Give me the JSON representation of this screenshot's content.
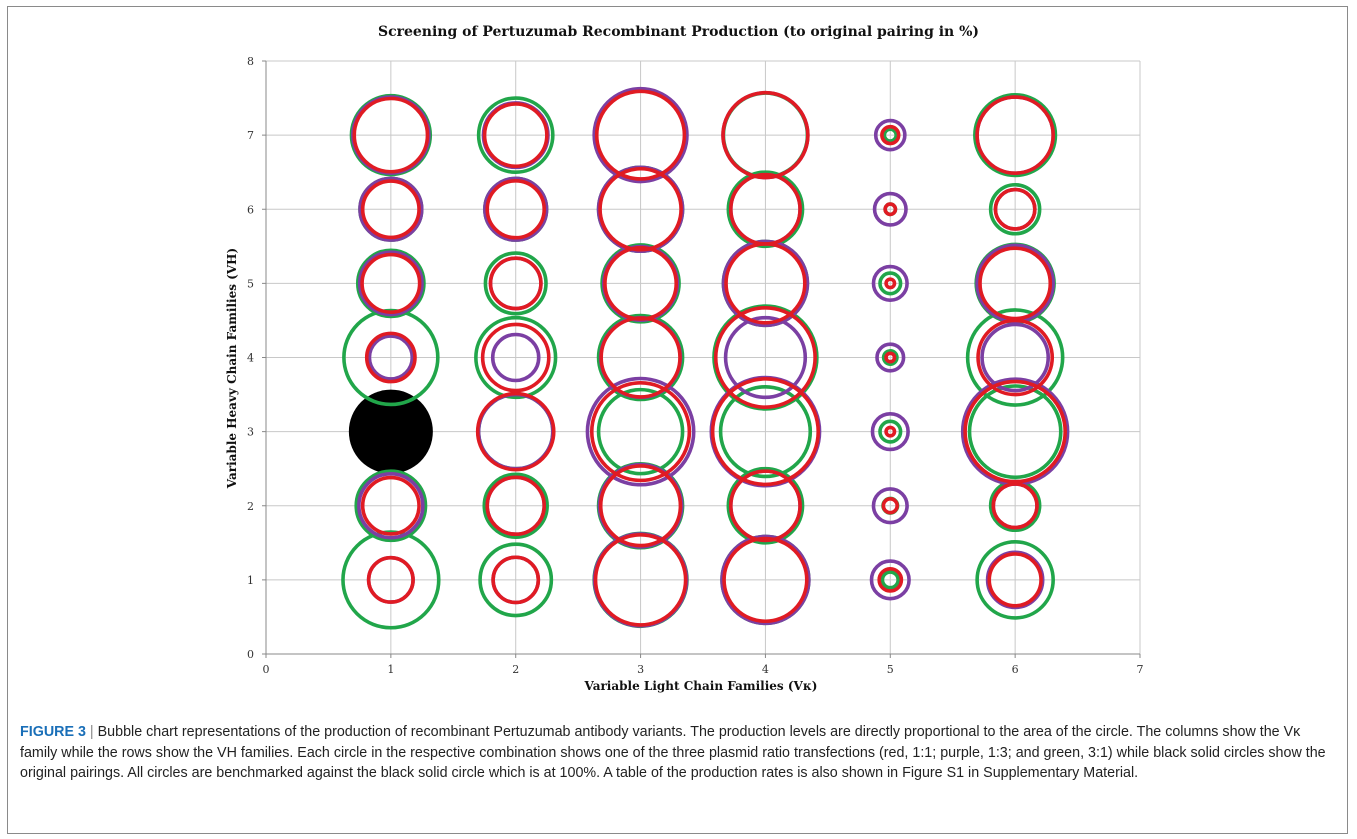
{
  "figure": {
    "label": "FIGURE 3",
    "separator": "|",
    "caption": "Bubble chart representations of the production of recombinant Pertuzumab antibody variants. The production levels are directly proportional to the area of the circle. The columns show the Vκ family while the rows show the VH families. Each circle in the respective combination shows one of the three plasmid ratio transfections (red, 1:1; purple, 1:3; and green, 3:1) while black solid circles show the original pairings. All circles are benchmarked against the black solid circle which is at 100%. A table of the production rates is also shown in Figure S1 in Supplementary Material."
  },
  "chart_data": {
    "type": "scatter",
    "subtype": "bubble",
    "title": "Screening of Pertuzumab Recombinant Production (to original pairing in %)",
    "xlabel": "Variable Light Chain Families (Vκ)",
    "ylabel": "Variable Heavy Chain Families (VH)",
    "xlim": [
      0,
      7
    ],
    "ylim": [
      0,
      8
    ],
    "xticks": [
      0,
      1,
      2,
      3,
      4,
      5,
      6,
      7
    ],
    "yticks": [
      0,
      1,
      2,
      3,
      4,
      5,
      6,
      7,
      8
    ],
    "grid": true,
    "size_encoding": "area proportional to production (%)",
    "reference_size_percent": 100,
    "colors": {
      "red": "#e01b23",
      "purple": "#7b3fa3",
      "green": "#21a64a",
      "black": "#000000"
    },
    "series": [
      {
        "color_key": "black",
        "filled": true,
        "points": [
          {
            "x": 1,
            "y": 3,
            "size": 100
          }
        ]
      },
      {
        "color_key": "red",
        "filled": false,
        "points": [
          {
            "x": 1,
            "y": 1,
            "size": 28
          },
          {
            "x": 1,
            "y": 2,
            "size": 45
          },
          {
            "x": 1,
            "y": 4,
            "size": 33
          },
          {
            "x": 1,
            "y": 5,
            "size": 47
          },
          {
            "x": 1,
            "y": 6,
            "size": 45
          },
          {
            "x": 1,
            "y": 7,
            "size": 76
          },
          {
            "x": 2,
            "y": 1,
            "size": 29
          },
          {
            "x": 2,
            "y": 2,
            "size": 46
          },
          {
            "x": 2,
            "y": 3,
            "size": 82
          },
          {
            "x": 2,
            "y": 4,
            "size": 62
          },
          {
            "x": 2,
            "y": 5,
            "size": 36
          },
          {
            "x": 2,
            "y": 6,
            "size": 46
          },
          {
            "x": 2,
            "y": 7,
            "size": 55
          },
          {
            "x": 3,
            "y": 1,
            "size": 115
          },
          {
            "x": 3,
            "y": 2,
            "size": 90
          },
          {
            "x": 3,
            "y": 3,
            "size": 135
          },
          {
            "x": 3,
            "y": 4,
            "size": 88
          },
          {
            "x": 3,
            "y": 5,
            "size": 72
          },
          {
            "x": 3,
            "y": 6,
            "size": 93
          },
          {
            "x": 3,
            "y": 7,
            "size": 109
          },
          {
            "x": 4,
            "y": 1,
            "size": 97
          },
          {
            "x": 4,
            "y": 2,
            "size": 68
          },
          {
            "x": 4,
            "y": 3,
            "size": 158
          },
          {
            "x": 4,
            "y": 4,
            "size": 140
          },
          {
            "x": 4,
            "y": 5,
            "size": 88
          },
          {
            "x": 4,
            "y": 6,
            "size": 68
          },
          {
            "x": 4,
            "y": 7,
            "size": 102
          },
          {
            "x": 5,
            "y": 1,
            "size": 7
          },
          {
            "x": 5,
            "y": 2,
            "size": 2.7
          },
          {
            "x": 5,
            "y": 3,
            "size": 1
          },
          {
            "x": 5,
            "y": 4,
            "size": 1
          },
          {
            "x": 5,
            "y": 5,
            "size": 1
          },
          {
            "x": 5,
            "y": 6,
            "size": 1.5
          },
          {
            "x": 5,
            "y": 7,
            "size": 4
          },
          {
            "x": 6,
            "y": 1,
            "size": 38
          },
          {
            "x": 6,
            "y": 2,
            "size": 27
          },
          {
            "x": 6,
            "y": 3,
            "size": 142
          },
          {
            "x": 6,
            "y": 4,
            "size": 78
          },
          {
            "x": 6,
            "y": 5,
            "size": 70
          },
          {
            "x": 6,
            "y": 6,
            "size": 22
          },
          {
            "x": 6,
            "y": 7,
            "size": 82
          }
        ]
      },
      {
        "color_key": "purple",
        "filled": false,
        "points": [
          {
            "x": 1,
            "y": 1,
            "size": 28
          },
          {
            "x": 1,
            "y": 2,
            "size": 58
          },
          {
            "x": 1,
            "y": 4,
            "size": 26
          },
          {
            "x": 1,
            "y": 5,
            "size": 55
          },
          {
            "x": 1,
            "y": 6,
            "size": 54
          },
          {
            "x": 1,
            "y": 7,
            "size": 82
          },
          {
            "x": 2,
            "y": 1,
            "size": 29
          },
          {
            "x": 2,
            "y": 2,
            "size": 46
          },
          {
            "x": 2,
            "y": 3,
            "size": 78
          },
          {
            "x": 2,
            "y": 4,
            "size": 30
          },
          {
            "x": 2,
            "y": 5,
            "size": 36
          },
          {
            "x": 2,
            "y": 6,
            "size": 54
          },
          {
            "x": 2,
            "y": 7,
            "size": 59
          },
          {
            "x": 3,
            "y": 1,
            "size": 120
          },
          {
            "x": 3,
            "y": 2,
            "size": 96
          },
          {
            "x": 3,
            "y": 3,
            "size": 160
          },
          {
            "x": 3,
            "y": 4,
            "size": 90
          },
          {
            "x": 3,
            "y": 5,
            "size": 77
          },
          {
            "x": 3,
            "y": 6,
            "size": 100
          },
          {
            "x": 3,
            "y": 7,
            "size": 122
          },
          {
            "x": 4,
            "y": 1,
            "size": 107
          },
          {
            "x": 4,
            "y": 2,
            "size": 68
          },
          {
            "x": 4,
            "y": 3,
            "size": 166
          },
          {
            "x": 4,
            "y": 4,
            "size": 90
          },
          {
            "x": 4,
            "y": 5,
            "size": 100
          },
          {
            "x": 4,
            "y": 6,
            "size": 68
          },
          {
            "x": 4,
            "y": 7,
            "size": 102
          },
          {
            "x": 5,
            "y": 1,
            "size": 20
          },
          {
            "x": 5,
            "y": 2,
            "size": 16
          },
          {
            "x": 5,
            "y": 3,
            "size": 18
          },
          {
            "x": 5,
            "y": 4,
            "size": 10
          },
          {
            "x": 5,
            "y": 5,
            "size": 16
          },
          {
            "x": 5,
            "y": 6,
            "size": 14
          },
          {
            "x": 5,
            "y": 7,
            "size": 12
          },
          {
            "x": 6,
            "y": 1,
            "size": 43
          },
          {
            "x": 6,
            "y": 2,
            "size": 27
          },
          {
            "x": 6,
            "y": 3,
            "size": 156
          },
          {
            "x": 6,
            "y": 4,
            "size": 62
          },
          {
            "x": 6,
            "y": 5,
            "size": 82
          },
          {
            "x": 6,
            "y": 6,
            "size": 22
          },
          {
            "x": 6,
            "y": 7,
            "size": 82
          }
        ]
      },
      {
        "color_key": "green",
        "filled": false,
        "points": [
          {
            "x": 1,
            "y": 1,
            "size": 130
          },
          {
            "x": 1,
            "y": 2,
            "size": 68
          },
          {
            "x": 1,
            "y": 4,
            "size": 125
          },
          {
            "x": 1,
            "y": 5,
            "size": 62
          },
          {
            "x": 1,
            "y": 6,
            "size": 54
          },
          {
            "x": 1,
            "y": 7,
            "size": 88
          },
          {
            "x": 2,
            "y": 1,
            "size": 72
          },
          {
            "x": 2,
            "y": 2,
            "size": 56
          },
          {
            "x": 2,
            "y": 3,
            "size": 78
          },
          {
            "x": 2,
            "y": 4,
            "size": 90
          },
          {
            "x": 2,
            "y": 5,
            "size": 52
          },
          {
            "x": 2,
            "y": 6,
            "size": 54
          },
          {
            "x": 2,
            "y": 7,
            "size": 78
          },
          {
            "x": 3,
            "y": 1,
            "size": 122
          },
          {
            "x": 3,
            "y": 2,
            "size": 100
          },
          {
            "x": 3,
            "y": 3,
            "size": 100
          },
          {
            "x": 3,
            "y": 4,
            "size": 100
          },
          {
            "x": 3,
            "y": 5,
            "size": 84
          },
          {
            "x": 3,
            "y": 6,
            "size": 100
          },
          {
            "x": 3,
            "y": 7,
            "size": 114
          },
          {
            "x": 4,
            "y": 1,
            "size": 107
          },
          {
            "x": 4,
            "y": 2,
            "size": 78
          },
          {
            "x": 4,
            "y": 3,
            "size": 114
          },
          {
            "x": 4,
            "y": 4,
            "size": 150
          },
          {
            "x": 4,
            "y": 5,
            "size": 100
          },
          {
            "x": 4,
            "y": 6,
            "size": 78
          },
          {
            "x": 4,
            "y": 7,
            "size": 100
          },
          {
            "x": 5,
            "y": 1,
            "size": 3.5
          },
          {
            "x": 5,
            "y": 2,
            "size": 3
          },
          {
            "x": 5,
            "y": 3,
            "size": 6
          },
          {
            "x": 5,
            "y": 4,
            "size": 2.5
          },
          {
            "x": 5,
            "y": 5,
            "size": 6
          },
          {
            "x": 5,
            "y": 6,
            "size": 1.5
          },
          {
            "x": 5,
            "y": 7,
            "size": 2
          },
          {
            "x": 6,
            "y": 1,
            "size": 82
          },
          {
            "x": 6,
            "y": 2,
            "size": 34
          },
          {
            "x": 6,
            "y": 3,
            "size": 118
          },
          {
            "x": 6,
            "y": 4,
            "size": 128
          },
          {
            "x": 6,
            "y": 5,
            "size": 86
          },
          {
            "x": 6,
            "y": 6,
            "size": 34
          },
          {
            "x": 6,
            "y": 7,
            "size": 92
          }
        ]
      }
    ]
  }
}
